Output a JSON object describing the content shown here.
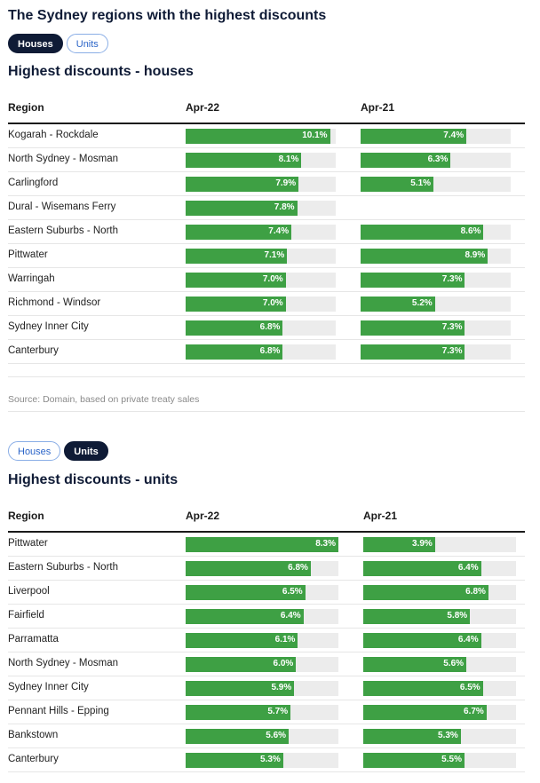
{
  "page_title": "The Sydney regions with the highest discounts",
  "source_text": "Source: Domain, based on private treaty sales",
  "toggle": {
    "houses_label": "Houses",
    "units_label": "Units"
  },
  "chart_data": [
    {
      "type": "bar",
      "title": "Highest discounts - houses",
      "column_headers": {
        "region": "Region",
        "col1": "Apr-22",
        "col2": "Apr-21"
      },
      "bar_color": "#3ea044",
      "track_color": "#ececec",
      "xlim": [
        0,
        10.5
      ],
      "rows": [
        {
          "region": "Kogarah - Rockdale",
          "apr22": 10.1,
          "apr21": 7.4,
          "apr22_label": "10.1%",
          "apr21_label": "7.4%"
        },
        {
          "region": "North Sydney - Mosman",
          "apr22": 8.1,
          "apr21": 6.3,
          "apr22_label": "8.1%",
          "apr21_label": "6.3%"
        },
        {
          "region": "Carlingford",
          "apr22": 7.9,
          "apr21": 5.1,
          "apr22_label": "7.9%",
          "apr21_label": "5.1%"
        },
        {
          "region": "Dural - Wisemans Ferry",
          "apr22": 7.8,
          "apr21": null,
          "apr22_label": "7.8%",
          "apr21_label": ""
        },
        {
          "region": "Eastern Suburbs - North",
          "apr22": 7.4,
          "apr21": 8.6,
          "apr22_label": "7.4%",
          "apr21_label": "8.6%"
        },
        {
          "region": "Pittwater",
          "apr22": 7.1,
          "apr21": 8.9,
          "apr22_label": "7.1%",
          "apr21_label": "8.9%"
        },
        {
          "region": "Warringah",
          "apr22": 7.0,
          "apr21": 7.3,
          "apr22_label": "7.0%",
          "apr21_label": "7.3%"
        },
        {
          "region": "Richmond - Windsor",
          "apr22": 7.0,
          "apr21": 5.2,
          "apr22_label": "7.0%",
          "apr21_label": "5.2%"
        },
        {
          "region": "Sydney Inner City",
          "apr22": 6.8,
          "apr21": 7.3,
          "apr22_label": "6.8%",
          "apr21_label": "7.3%"
        },
        {
          "region": "Canterbury",
          "apr22": 6.8,
          "apr21": 7.3,
          "apr22_label": "6.8%",
          "apr21_label": "7.3%"
        }
      ]
    },
    {
      "type": "bar",
      "title": "Highest discounts - units",
      "column_headers": {
        "region": "Region",
        "col1": "Apr-22",
        "col2": "Apr-21"
      },
      "bar_color": "#3ea044",
      "track_color": "#ececec",
      "xlim": [
        0,
        8.3
      ],
      "rows": [
        {
          "region": "Pittwater",
          "apr22": 8.3,
          "apr21": 3.9,
          "apr22_label": "8.3%",
          "apr21_label": "3.9%"
        },
        {
          "region": "Eastern Suburbs - North",
          "apr22": 6.8,
          "apr21": 6.4,
          "apr22_label": "6.8%",
          "apr21_label": "6.4%"
        },
        {
          "region": "Liverpool",
          "apr22": 6.5,
          "apr21": 6.8,
          "apr22_label": "6.5%",
          "apr21_label": "6.8%"
        },
        {
          "region": "Fairfield",
          "apr22": 6.4,
          "apr21": 5.8,
          "apr22_label": "6.4%",
          "apr21_label": "5.8%"
        },
        {
          "region": "Parramatta",
          "apr22": 6.1,
          "apr21": 6.4,
          "apr22_label": "6.1%",
          "apr21_label": "6.4%"
        },
        {
          "region": "North Sydney - Mosman",
          "apr22": 6.0,
          "apr21": 5.6,
          "apr22_label": "6.0%",
          "apr21_label": "5.6%"
        },
        {
          "region": "Sydney Inner City",
          "apr22": 5.9,
          "apr21": 6.5,
          "apr22_label": "5.9%",
          "apr21_label": "6.5%"
        },
        {
          "region": "Pennant Hills - Epping",
          "apr22": 5.7,
          "apr21": 6.7,
          "apr22_label": "5.7%",
          "apr21_label": "6.7%"
        },
        {
          "region": "Bankstown",
          "apr22": 5.6,
          "apr21": 5.3,
          "apr22_label": "5.6%",
          "apr21_label": "5.3%"
        },
        {
          "region": "Canterbury",
          "apr22": 5.3,
          "apr21": 5.5,
          "apr22_label": "5.3%",
          "apr21_label": "5.5%"
        }
      ]
    }
  ]
}
